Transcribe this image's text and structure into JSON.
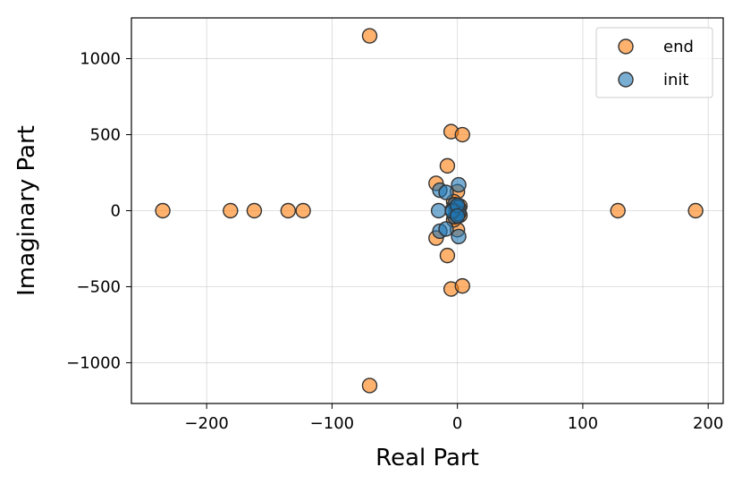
{
  "chart_data": {
    "type": "scatter",
    "xlabel": "Real Part",
    "ylabel": "Imaginary Part",
    "xlim": [
      -260,
      212
    ],
    "ylim": [
      -1268,
      1268
    ],
    "x_ticks": [
      -200,
      -100,
      0,
      100,
      200
    ],
    "x_tick_labels": [
      "−200",
      "−100",
      "0",
      "100",
      "200"
    ],
    "y_ticks": [
      -1000,
      -500,
      0,
      500,
      1000
    ],
    "y_tick_labels": [
      "−1000",
      "−500",
      "0",
      "500",
      "1000"
    ],
    "grid": true,
    "legend_position": "upper right",
    "series": [
      {
        "name": "end",
        "color": "#ff7f0e",
        "alpha": 0.6,
        "x": [
          -70,
          -70,
          -5,
          4,
          -5,
          4,
          -8,
          -8,
          -17,
          -17,
          -235,
          -181,
          -162,
          -135,
          -123,
          128,
          190,
          0,
          0,
          2,
          2,
          -3,
          -3,
          -1
        ],
        "y": [
          1150,
          -1150,
          520,
          500,
          -515,
          -495,
          295,
          -295,
          180,
          -180,
          0,
          0,
          0,
          0,
          0,
          0,
          0,
          125,
          -125,
          30,
          -30,
          60,
          -60,
          0
        ]
      },
      {
        "name": "init",
        "color": "#1f77b4",
        "alpha": 0.6,
        "x": [
          -14,
          -14,
          -15,
          1,
          1,
          -9,
          -9,
          -2,
          -2,
          -1,
          -1,
          1,
          1,
          -4,
          -4,
          0,
          0
        ],
        "y": [
          135,
          -135,
          0,
          170,
          -170,
          120,
          -120,
          40,
          -40,
          25,
          -25,
          20,
          -20,
          5,
          -5,
          35,
          -35
        ]
      }
    ]
  }
}
